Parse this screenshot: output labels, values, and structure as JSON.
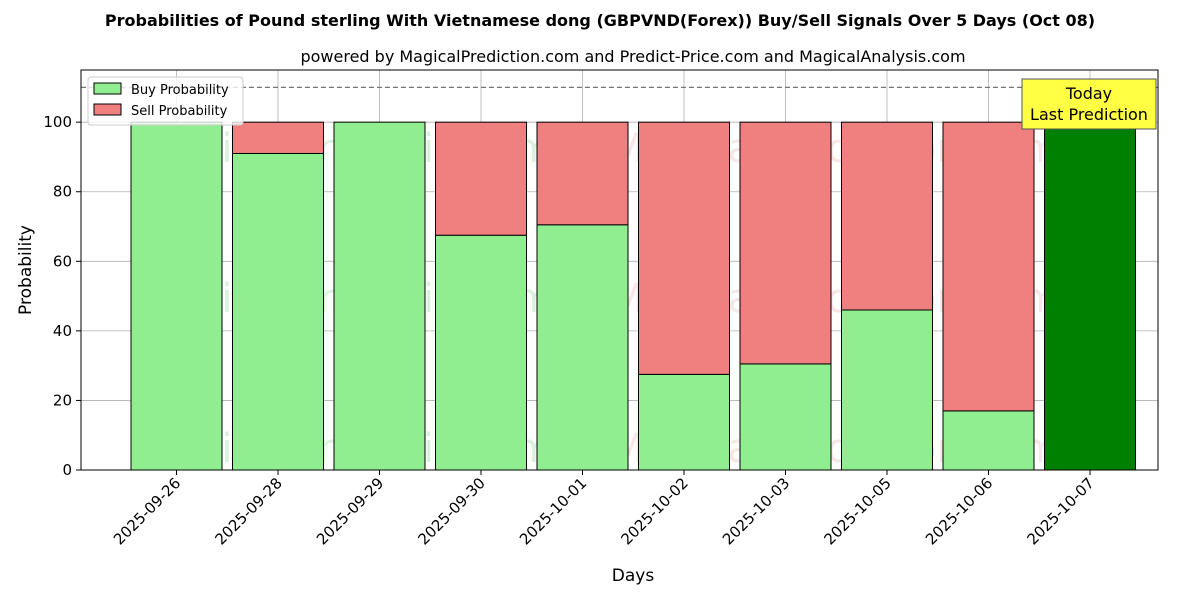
{
  "chart_data": {
    "type": "bar",
    "stacked": true,
    "title": "Probabilities of Pound sterling With Vietnamese dong (GBPVND(Forex)) Buy/Sell Signals Over 5 Days (Oct 08)",
    "subtitle": "powered by MagicalPrediction.com and Predict-Price.com and MagicalAnalysis.com",
    "xlabel": "Days",
    "ylabel": "Probability",
    "ylim": [
      0,
      115
    ],
    "yticks": [
      0,
      20,
      40,
      60,
      80,
      100
    ],
    "grid": true,
    "legend_position": "top-left",
    "reference_line": 110,
    "categories": [
      "2025-09-26",
      "2025-09-28",
      "2025-09-29",
      "2025-09-30",
      "2025-10-01",
      "2025-10-02",
      "2025-10-03",
      "2025-10-05",
      "2025-10-06",
      "2025-10-07"
    ],
    "series": [
      {
        "name": "Buy Probability",
        "color": "#90ee90",
        "values": [
          100,
          91,
          100,
          67.5,
          70.5,
          27.5,
          30.5,
          46,
          17,
          100
        ]
      },
      {
        "name": "Sell Probability",
        "color": "#f08080",
        "values": [
          0,
          9,
          0,
          32.5,
          29.5,
          72.5,
          69.5,
          54,
          83,
          0
        ]
      }
    ],
    "highlight": {
      "index": 9,
      "color": "#008000"
    },
    "annotation": {
      "line1": "Today",
      "line2": "Last Prediction",
      "background": "#ffff44"
    },
    "watermarks": [
      "MagicalAnalysis.com",
      "MagicalPrediction.com"
    ]
  }
}
